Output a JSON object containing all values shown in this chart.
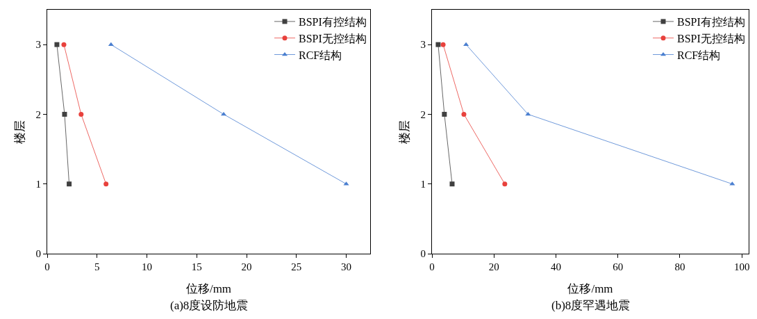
{
  "chart_data": [
    {
      "type": "line",
      "xlabel": "位移/mm",
      "ylabel": "楼层",
      "annotations": [
        "(a)8度设防地震"
      ],
      "xlim": [
        0,
        32.4
      ],
      "xticks": [
        0,
        5,
        10,
        15,
        20,
        25,
        30
      ],
      "ylim": [
        0,
        3.5
      ],
      "yticks": [
        0,
        1,
        2,
        3
      ],
      "grid": false,
      "legend": "top right",
      "series": [
        {
          "name": "BSPI有控结构",
          "color": "#404040",
          "marker": "square",
          "x": [
            0.97,
            1.74,
            2.2
          ],
          "values": [
            3,
            2,
            1
          ]
        },
        {
          "name": "BSPI无控结构",
          "color": "#e8413c",
          "marker": "circle",
          "x": [
            1.67,
            3.4,
            5.9
          ],
          "values": [
            3,
            2,
            1
          ]
        },
        {
          "name": "RCF结构",
          "color": "#4a7fd0",
          "marker": "triangle",
          "x": [
            6.4,
            17.7,
            30
          ],
          "values": [
            3,
            2,
            1
          ]
        }
      ]
    },
    {
      "type": "line",
      "xlabel": "位移/mm",
      "ylabel": "楼层",
      "annotations": [
        "(b)8度罕遇地震"
      ],
      "xlim": [
        0,
        102.2
      ],
      "xticks": [
        0,
        20,
        40,
        60,
        80,
        100
      ],
      "ylim": [
        0,
        3.5
      ],
      "yticks": [
        0,
        1,
        2,
        3
      ],
      "grid": false,
      "legend": "top right",
      "series": [
        {
          "name": "BSPI有控结构",
          "color": "#404040",
          "marker": "square",
          "x": [
            2.0,
            4.0,
            6.5
          ],
          "values": [
            3,
            2,
            1
          ]
        },
        {
          "name": "BSPI无控结构",
          "color": "#e8413c",
          "marker": "circle",
          "x": [
            3.6,
            10.3,
            23.5
          ],
          "values": [
            3,
            2,
            1
          ]
        },
        {
          "name": "RCF结构",
          "color": "#4a7fd0",
          "marker": "triangle",
          "x": [
            11,
            31,
            96.9
          ],
          "values": [
            3,
            2,
            1
          ]
        }
      ]
    }
  ]
}
